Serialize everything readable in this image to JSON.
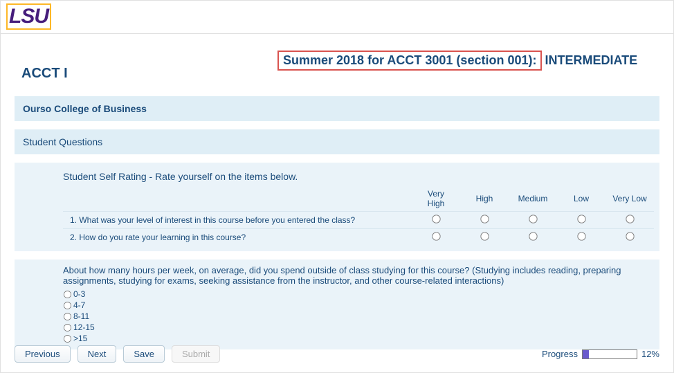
{
  "logo": {
    "text": "LSU"
  },
  "page_title": {
    "acct_label": "ACCT I",
    "boxed": "Summer 2018 for ACCT 3001 (section 001):",
    "after": "INTERMEDIATE"
  },
  "college_band": "Ourso College of Business",
  "questions_band": "Student Questions",
  "rating": {
    "title": "Student Self Rating - Rate yourself on the items below.",
    "columns": [
      "Very High",
      "High",
      "Medium",
      "Low",
      "Very Low"
    ],
    "items": [
      "1. What was your level of interest in this course before you entered the class?",
      "2. How do you rate your learning in this course?"
    ]
  },
  "hours": {
    "question": "About how many hours per week, on average, did you spend outside of class studying for this course? (Studying includes reading, preparing assignments, studying for exams, seeking assistance from the instructor, and other course-related interactions)",
    "options": [
      "0-3",
      "4-7",
      "8-11",
      "12-15",
      ">15"
    ]
  },
  "buttons": {
    "previous": "Previous",
    "next": "Next",
    "save": "Save",
    "submit": "Submit"
  },
  "progress": {
    "label": "Progress",
    "percent_label": "12%",
    "percent_value": 12
  }
}
